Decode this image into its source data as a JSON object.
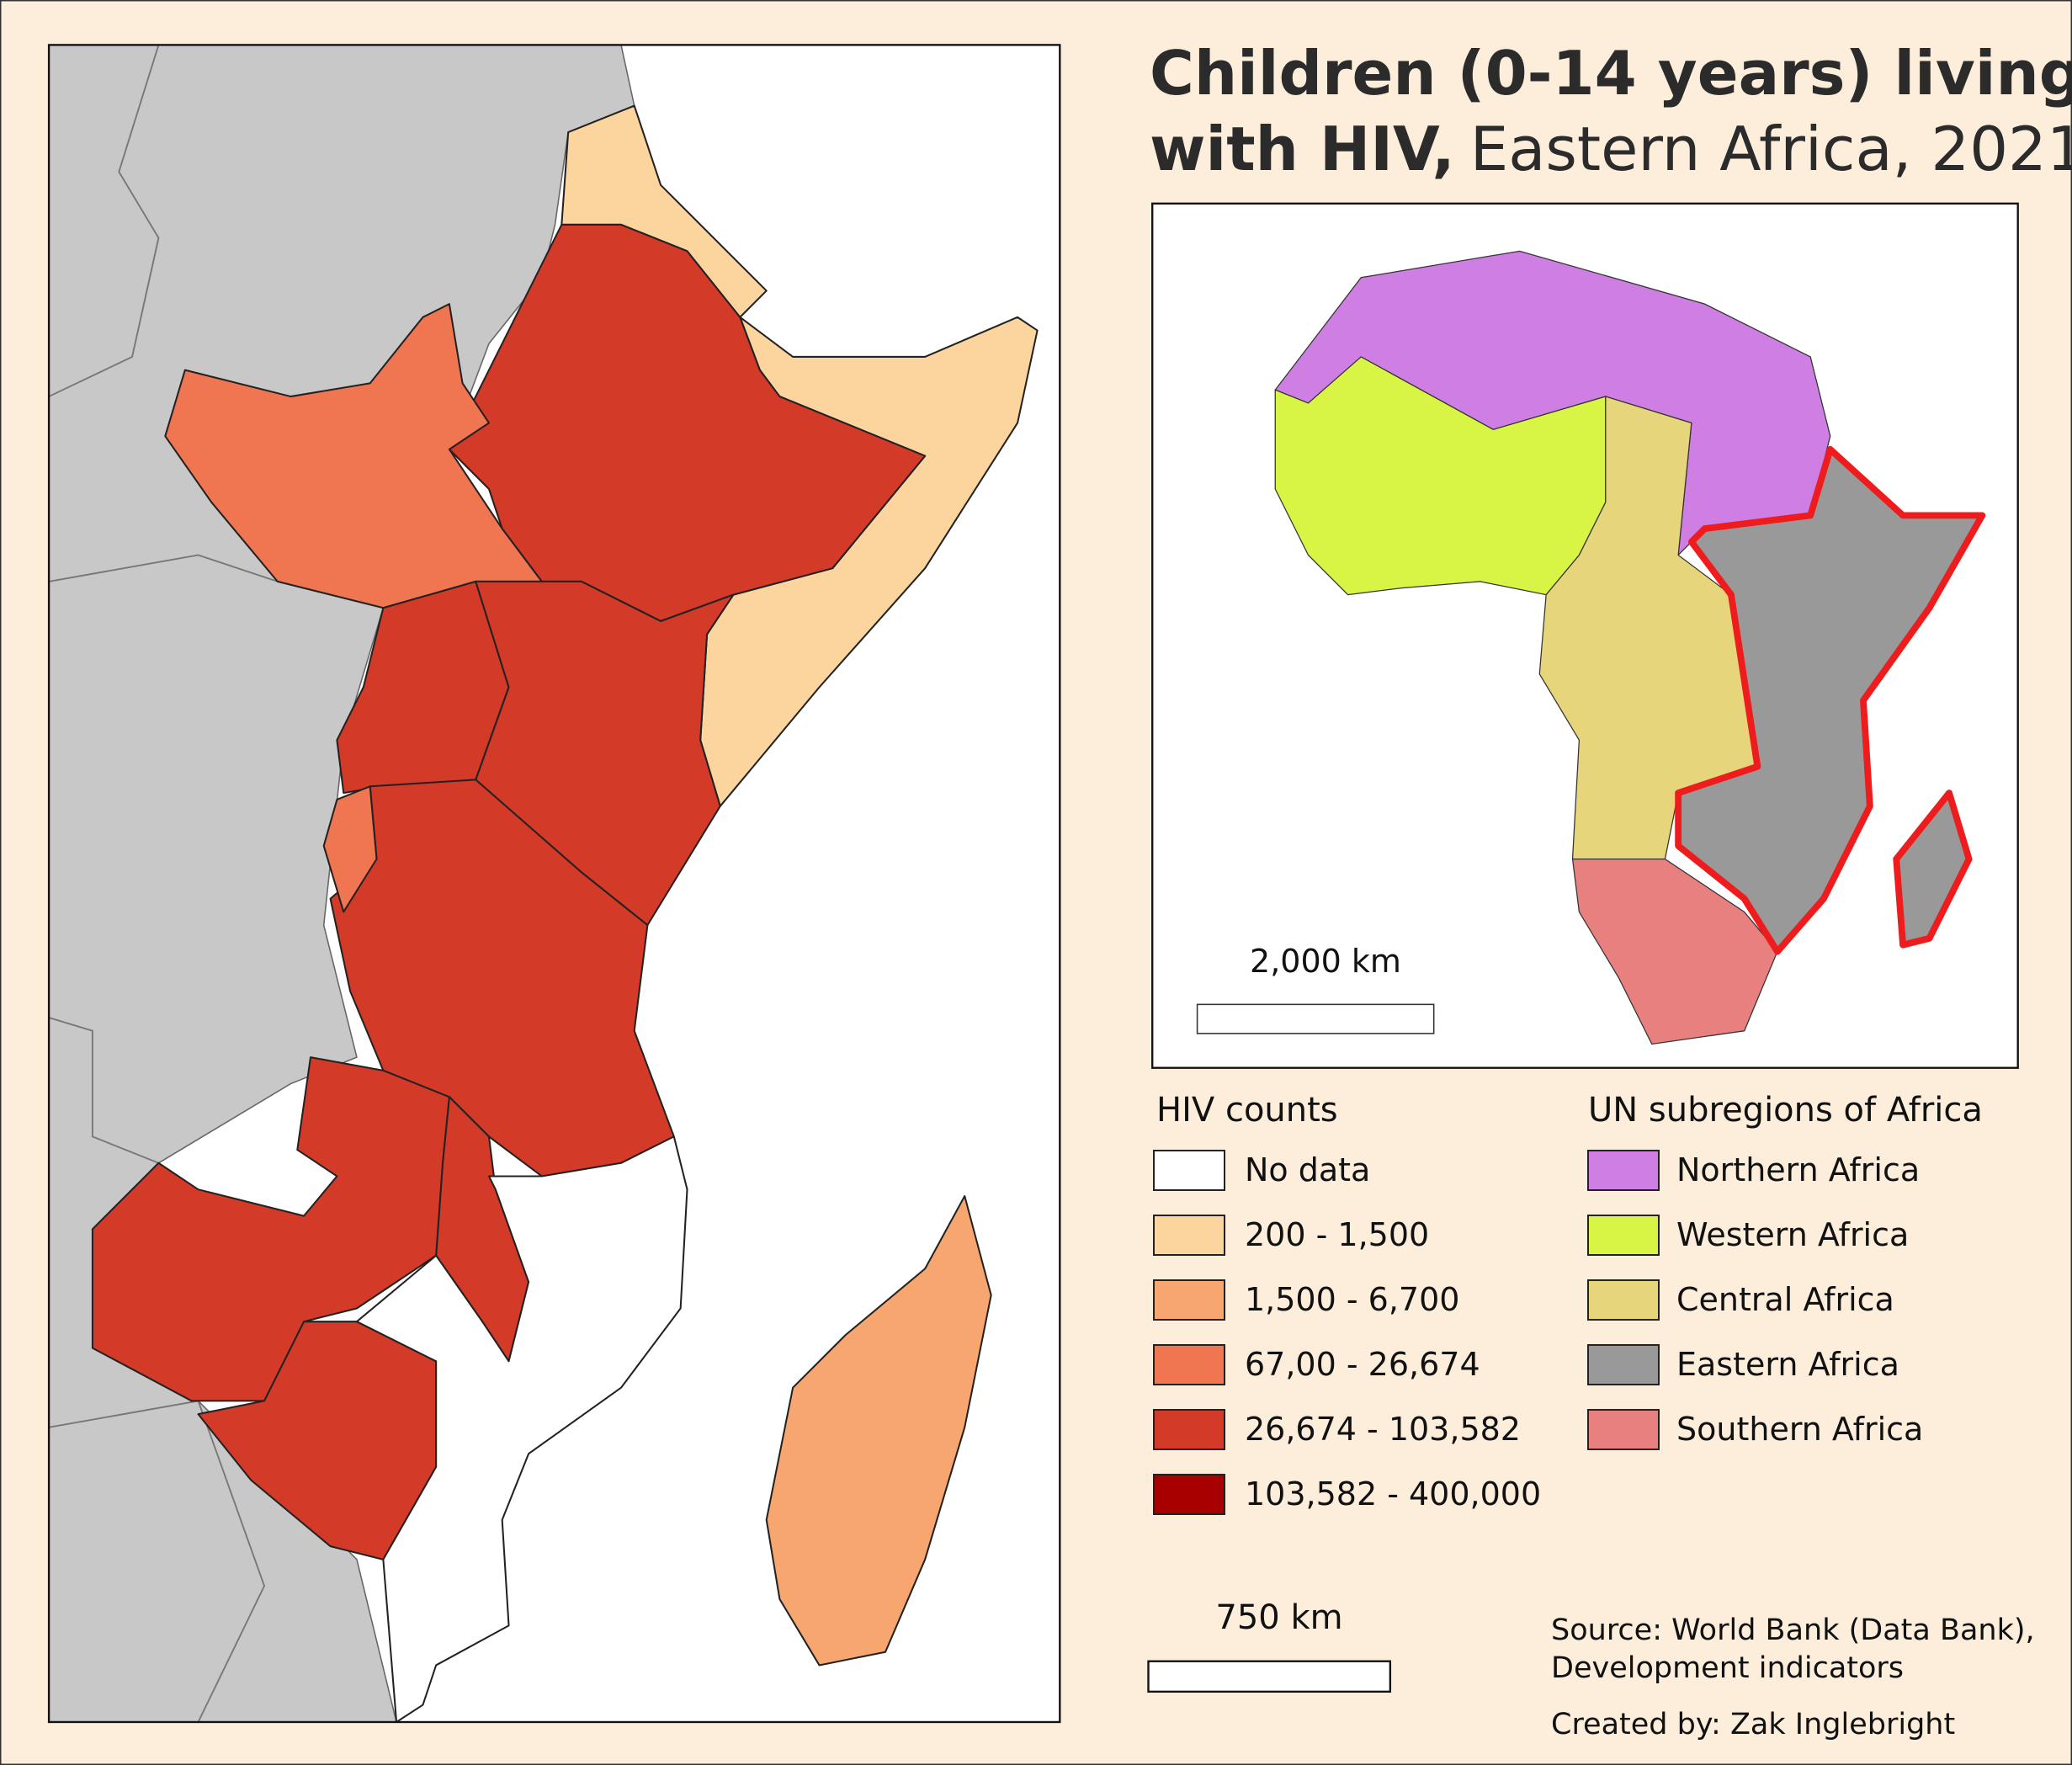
{
  "title": {
    "line1": "Children (0-14 years) living",
    "line2_bold": "with HIV,",
    "line2_regular": "Eastern Africa, 2021"
  },
  "legend_hiv": {
    "title": "HIV counts",
    "items": [
      {
        "label": "No data",
        "color": "#ffffff"
      },
      {
        "label": "200 - 1,500",
        "color": "#fcd59e"
      },
      {
        "label": "1,500 - 6,700",
        "color": "#f8a670"
      },
      {
        "label": "67,00 - 26,674",
        "color": "#f07551"
      },
      {
        "label": "26,674 - 103,582",
        "color": "#d33a27"
      },
      {
        "label": "103,582 - 400,000",
        "color": "#a80000"
      }
    ]
  },
  "legend_subregions": {
    "title": "UN subregions of Africa",
    "items": [
      {
        "label": "Northern Africa",
        "color": "#cf7fe3"
      },
      {
        "label": "Western Africa",
        "color": "#d8f545"
      },
      {
        "label": "Central Africa",
        "color": "#e6d57a"
      },
      {
        "label": "Eastern Africa",
        "color": "#999999"
      },
      {
        "label": "Southern Africa",
        "color": "#e88080"
      }
    ]
  },
  "scale_main": "750 km",
  "scale_inset": "2,000 km",
  "source": [
    "Source: World Bank (Data Bank),",
    "Development indicators"
  ],
  "credit": "Created by: Zak Inglebright"
}
